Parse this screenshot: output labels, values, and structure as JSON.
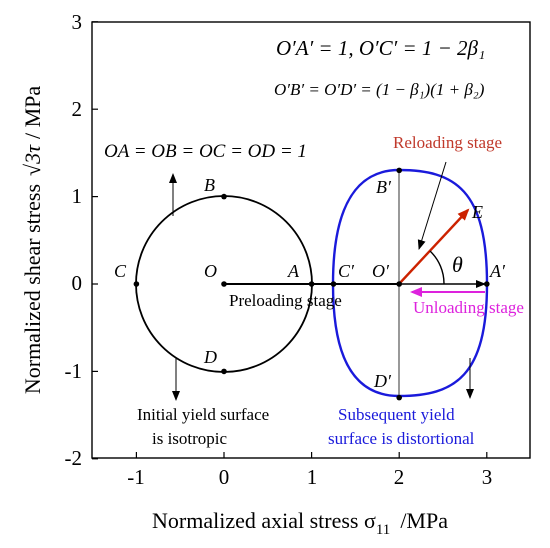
{
  "axes": {
    "xlabel_main": "Normalized axial stress σ",
    "xlabel_sub": "11",
    "xlabel_unit": "/MPa",
    "ylabel_main": "Normalized shear stress",
    "ylabel_sym": "√3τ",
    "ylabel_unit": "/ MPa",
    "xlim": [
      -1.5,
      3.5
    ],
    "ylim": [
      -2,
      3
    ],
    "xticks": [
      "-1",
      "0",
      "1",
      "2",
      "3"
    ],
    "yticks": [
      "-2",
      "-1",
      "0",
      "1",
      "2",
      "3"
    ]
  },
  "equations": {
    "eq_top": "O′A′ = 1,  O′C′ = 1 − 2β₁",
    "eq_mid": "O′B′ = O′D′ = (1 − β₁)(1 + β₂)",
    "eq_left": "OA = OB = OC = OD = 1"
  },
  "labels": {
    "reloading": "Reloading stage",
    "preloading": "Preloading stage",
    "unloading": "Unloading stage",
    "initial_line1": "Initial yield surface",
    "initial_line2": "is isotropic",
    "subsequent_line1": "Subsequent yield",
    "subsequent_line2": "surface is distortional",
    "theta": "θ"
  },
  "colors": {
    "initial": "#000000",
    "subsequent": "#1a1adb",
    "reload": "#cc2200",
    "reload_text": "#c0392b",
    "unload": "#dd22dd",
    "eq_text": "#1a1adb"
  },
  "chart_data": {
    "type": "diagram",
    "initial_circle": {
      "center": [
        0,
        0
      ],
      "radius": 1,
      "points": [
        {
          "name": "O",
          "x": 0,
          "y": 0
        },
        {
          "name": "A",
          "x": 1,
          "y": 0
        },
        {
          "name": "B",
          "x": 0,
          "y": 1
        },
        {
          "name": "C",
          "x": -1,
          "y": 0
        },
        {
          "name": "D",
          "x": 0,
          "y": -1
        }
      ]
    },
    "subsequent_surface": {
      "center": [
        2,
        0
      ],
      "points": [
        {
          "name": "O′",
          "x": 2,
          "y": 0
        },
        {
          "name": "A′",
          "x": 3,
          "y": 0
        },
        {
          "name": "B′",
          "x": 2,
          "y": 1.3
        },
        {
          "name": "C′",
          "x": 1.25,
          "y": 0
        },
        {
          "name": "D′",
          "x": 2,
          "y": -1.3
        },
        {
          "name": "E",
          "x": 2.78,
          "y": 0.82
        }
      ]
    }
  }
}
